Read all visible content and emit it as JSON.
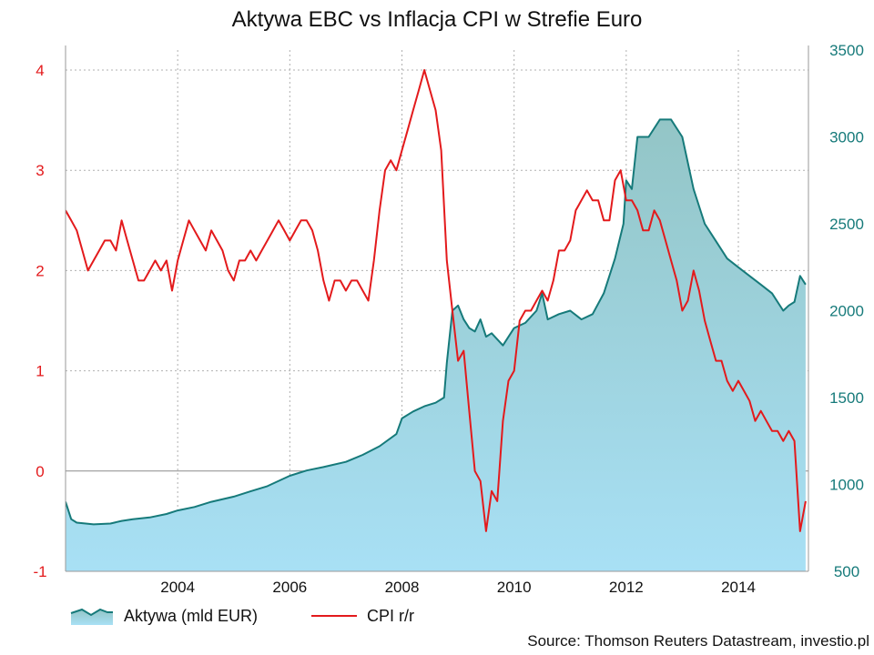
{
  "chart_data": {
    "type": "line",
    "title": "Aktywa EBC vs Inflacja CPI w Strefie Euro",
    "source": "Source: Thomson Reuters Datastream, investio.pl",
    "x_ticks": [
      "2004",
      "2006",
      "2008",
      "2010",
      "2012",
      "2014"
    ],
    "xlim": [
      2002.0,
      2015.25
    ],
    "y_left": {
      "ticks": [
        "4",
        "3",
        "2",
        "1",
        "0",
        "-1"
      ],
      "lim": [
        -1,
        4.2
      ],
      "color": "#e31a1c"
    },
    "y_right": {
      "ticks": [
        "3500",
        "3000",
        "2500",
        "2000",
        "1500",
        "1000",
        "500"
      ],
      "lim": [
        500,
        3500
      ],
      "color": "#167a7a"
    },
    "grid": true,
    "legend_position": "bottom-left",
    "series": [
      {
        "name": "Aktywa (mld EUR)",
        "kind": "area",
        "axis": "right",
        "color": "#167a7a",
        "fill_top": "#93c5c6",
        "fill_bottom": "#a8e0f5",
        "x": [
          2002.0,
          2002.1,
          2002.2,
          2002.5,
          2002.8,
          2003.0,
          2003.2,
          2003.5,
          2003.8,
          2004.0,
          2004.3,
          2004.6,
          2005.0,
          2005.3,
          2005.6,
          2006.0,
          2006.3,
          2006.6,
          2007.0,
          2007.3,
          2007.6,
          2007.9,
          2008.0,
          2008.2,
          2008.4,
          2008.6,
          2008.75,
          2008.8,
          2008.9,
          2009.0,
          2009.1,
          2009.2,
          2009.3,
          2009.4,
          2009.5,
          2009.6,
          2009.8,
          2010.0,
          2010.2,
          2010.4,
          2010.5,
          2010.6,
          2010.8,
          2011.0,
          2011.2,
          2011.4,
          2011.6,
          2011.8,
          2011.95,
          2012.0,
          2012.1,
          2012.2,
          2012.4,
          2012.6,
          2012.8,
          2013.0,
          2013.2,
          2013.4,
          2013.6,
          2013.8,
          2014.0,
          2014.2,
          2014.4,
          2014.6,
          2014.8,
          2014.9,
          2015.0,
          2015.1,
          2015.2
        ],
        "values": [
          900,
          800,
          780,
          770,
          775,
          790,
          800,
          810,
          830,
          850,
          870,
          900,
          930,
          960,
          990,
          1050,
          1080,
          1100,
          1130,
          1170,
          1220,
          1290,
          1380,
          1420,
          1450,
          1470,
          1500,
          1700,
          2000,
          2030,
          1950,
          1900,
          1880,
          1950,
          1850,
          1870,
          1800,
          1900,
          1930,
          2000,
          2100,
          1950,
          1980,
          2000,
          1950,
          1980,
          2100,
          2300,
          2500,
          2750,
          2700,
          3000,
          3000,
          3100,
          3100,
          3000,
          2700,
          2500,
          2400,
          2300,
          2250,
          2200,
          2150,
          2100,
          2000,
          2030,
          2050,
          2200,
          2150
        ]
      },
      {
        "name": "CPI r/r",
        "kind": "line",
        "axis": "left",
        "color": "#e31a1c",
        "x": [
          2002.0,
          2002.1,
          2002.2,
          2002.3,
          2002.4,
          2002.5,
          2002.6,
          2002.7,
          2002.8,
          2002.9,
          2003.0,
          2003.1,
          2003.2,
          2003.3,
          2003.4,
          2003.5,
          2003.6,
          2003.7,
          2003.8,
          2003.9,
          2004.0,
          2004.1,
          2004.2,
          2004.3,
          2004.4,
          2004.5,
          2004.6,
          2004.7,
          2004.8,
          2004.9,
          2005.0,
          2005.1,
          2005.2,
          2005.3,
          2005.4,
          2005.5,
          2005.6,
          2005.7,
          2005.8,
          2005.9,
          2006.0,
          2006.1,
          2006.2,
          2006.3,
          2006.4,
          2006.5,
          2006.6,
          2006.7,
          2006.8,
          2006.9,
          2007.0,
          2007.1,
          2007.2,
          2007.3,
          2007.4,
          2007.5,
          2007.6,
          2007.7,
          2007.8,
          2007.9,
          2008.0,
          2008.1,
          2008.2,
          2008.3,
          2008.4,
          2008.5,
          2008.6,
          2008.7,
          2008.8,
          2008.9,
          2009.0,
          2009.1,
          2009.2,
          2009.3,
          2009.4,
          2009.5,
          2009.6,
          2009.7,
          2009.8,
          2009.9,
          2010.0,
          2010.1,
          2010.2,
          2010.3,
          2010.4,
          2010.5,
          2010.6,
          2010.7,
          2010.8,
          2010.9,
          2011.0,
          2011.1,
          2011.2,
          2011.3,
          2011.4,
          2011.5,
          2011.6,
          2011.7,
          2011.8,
          2011.9,
          2012.0,
          2012.1,
          2012.2,
          2012.3,
          2012.4,
          2012.5,
          2012.6,
          2012.7,
          2012.8,
          2012.9,
          2013.0,
          2013.1,
          2013.2,
          2013.3,
          2013.4,
          2013.5,
          2013.6,
          2013.7,
          2013.8,
          2013.9,
          2014.0,
          2014.1,
          2014.2,
          2014.3,
          2014.4,
          2014.5,
          2014.6,
          2014.7,
          2014.8,
          2014.9,
          2015.0,
          2015.1,
          2015.2
        ],
        "values": [
          2.6,
          2.5,
          2.4,
          2.2,
          2.0,
          2.1,
          2.2,
          2.3,
          2.3,
          2.2,
          2.5,
          2.3,
          2.1,
          1.9,
          1.9,
          2.0,
          2.1,
          2.0,
          2.1,
          1.8,
          2.1,
          2.3,
          2.5,
          2.4,
          2.3,
          2.2,
          2.4,
          2.3,
          2.2,
          2.0,
          1.9,
          2.1,
          2.1,
          2.2,
          2.1,
          2.2,
          2.3,
          2.4,
          2.5,
          2.4,
          2.3,
          2.4,
          2.5,
          2.5,
          2.4,
          2.2,
          1.9,
          1.7,
          1.9,
          1.9,
          1.8,
          1.9,
          1.9,
          1.8,
          1.7,
          2.1,
          2.6,
          3.0,
          3.1,
          3.0,
          3.2,
          3.4,
          3.6,
          3.8,
          4.0,
          3.8,
          3.6,
          3.2,
          2.1,
          1.6,
          1.1,
          1.2,
          0.6,
          0.0,
          -0.1,
          -0.6,
          -0.2,
          -0.3,
          0.5,
          0.9,
          1.0,
          1.5,
          1.6,
          1.6,
          1.7,
          1.8,
          1.7,
          1.9,
          2.2,
          2.2,
          2.3,
          2.6,
          2.7,
          2.8,
          2.7,
          2.7,
          2.5,
          2.5,
          2.9,
          3.0,
          2.7,
          2.7,
          2.6,
          2.4,
          2.4,
          2.6,
          2.5,
          2.3,
          2.1,
          1.9,
          1.6,
          1.7,
          2.0,
          1.8,
          1.5,
          1.3,
          1.1,
          1.1,
          0.9,
          0.8,
          0.9,
          0.8,
          0.7,
          0.5,
          0.6,
          0.5,
          0.4,
          0.4,
          0.3,
          0.4,
          0.3,
          -0.6,
          -0.3
        ]
      }
    ]
  }
}
